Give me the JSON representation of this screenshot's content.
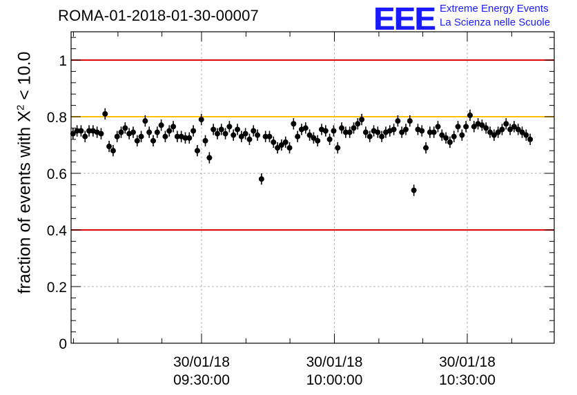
{
  "header": {
    "run_title": "ROMA-01-2018-01-30-00007",
    "logo_text": "EEE",
    "logo_line1": "Extreme Energy Events",
    "logo_line2": "La Scienza nelle Scuole"
  },
  "colors": {
    "logo": "#1a1aff",
    "limit_lines": "#e00000",
    "reference_line": "#ffc000",
    "points": "#000000",
    "grid": "#b0b0b0"
  },
  "chart_data": {
    "type": "scatter",
    "title": "ROMA-01-2018-01-30-00007",
    "ylabel_prefix": "fraction of events with ",
    "ylabel_symbol": "X",
    "ylabel_sup": "2",
    "ylabel_suffix": " < 10.0",
    "xlabel": "",
    "ylim": [
      0,
      1.1
    ],
    "yticks": [
      0,
      0.2,
      0.4,
      0.6,
      0.8,
      1
    ],
    "ytick_labels": [
      "0",
      "0.2",
      "0.4",
      "0.6",
      "0.8",
      "1"
    ],
    "xlim_minutes": [
      0,
      100
    ],
    "x_unit": "minutes after 30/01/18 09:00:30",
    "xticks": [
      {
        "minutes": 27,
        "line1": "30/01/18",
        "line2": "09:30:00"
      },
      {
        "minutes": 54.5,
        "line1": "30/01/18",
        "line2": "10:00:00"
      },
      {
        "minutes": 82,
        "line1": "30/01/18",
        "line2": "10:30:00"
      }
    ],
    "minor_x_minutes": [
      0.5,
      9.7,
      18.8,
      36.2,
      45.3,
      63.7,
      72.8,
      91.2
    ],
    "horizontal_lines": [
      {
        "y": 1.0,
        "color": "#e00000"
      },
      {
        "y": 0.8,
        "color": "#ffc000"
      },
      {
        "y": 0.4,
        "color": "#e00000"
      }
    ],
    "grid": true,
    "error": 0.02,
    "x_start_minutes": 0.4,
    "x_step_minutes": 0.83,
    "y": [
      0.74,
      0.75,
      0.75,
      0.73,
      0.75,
      0.75,
      0.745,
      0.74,
      0.81,
      0.695,
      0.68,
      0.73,
      0.745,
      0.76,
      0.74,
      0.745,
      0.715,
      0.73,
      0.785,
      0.745,
      0.715,
      0.745,
      0.77,
      0.73,
      0.75,
      0.765,
      0.73,
      0.73,
      0.725,
      0.725,
      0.75,
      0.68,
      0.79,
      0.715,
      0.655,
      0.755,
      0.74,
      0.755,
      0.74,
      0.765,
      0.735,
      0.755,
      0.73,
      0.74,
      0.72,
      0.75,
      0.735,
      0.58,
      0.73,
      0.73,
      0.71,
      0.69,
      0.7,
      0.71,
      0.69,
      0.775,
      0.73,
      0.755,
      0.76,
      0.735,
      0.725,
      0.715,
      0.755,
      0.75,
      0.72,
      0.75,
      0.69,
      0.76,
      0.745,
      0.745,
      0.76,
      0.775,
      0.79,
      0.745,
      0.73,
      0.75,
      0.745,
      0.73,
      0.745,
      0.75,
      0.755,
      0.785,
      0.745,
      0.755,
      0.785,
      0.54,
      0.755,
      0.75,
      0.69,
      0.745,
      0.745,
      0.765,
      0.735,
      0.725,
      0.71,
      0.73,
      0.765,
      0.735,
      0.765,
      0.805,
      0.765,
      0.775,
      0.77,
      0.76,
      0.745,
      0.735,
      0.745,
      0.755,
      0.775,
      0.755,
      0.765,
      0.755,
      0.745,
      0.735,
      0.72
    ]
  }
}
